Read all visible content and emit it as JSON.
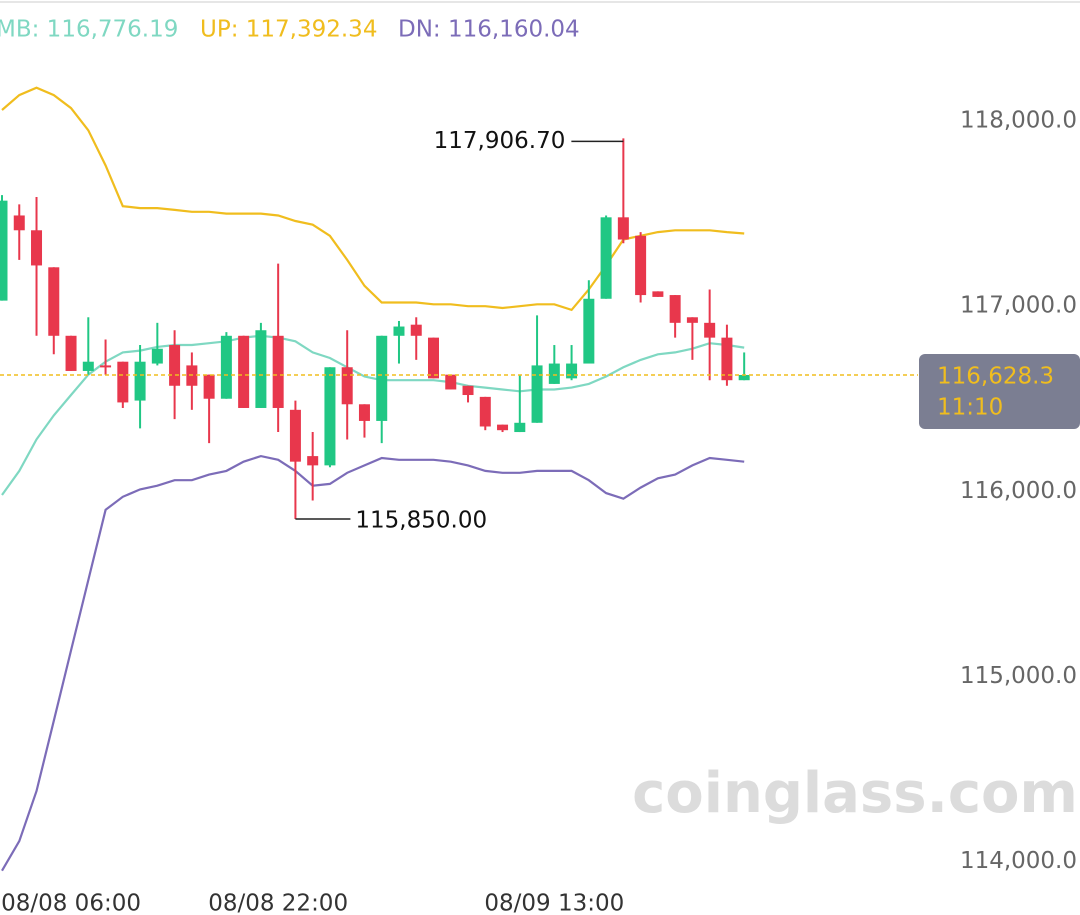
{
  "chart_data": {
    "type": "candlestick",
    "categories": [
      null,
      null,
      null,
      null,
      "08/08 06:00",
      null,
      null,
      null,
      null,
      null,
      null,
      null,
      null,
      null,
      null,
      null,
      "08/08 22:00",
      null,
      null,
      null,
      null,
      null,
      null,
      null,
      null,
      null,
      null,
      null,
      null,
      null,
      null,
      null,
      "08/09 13:00",
      null,
      null,
      null,
      null,
      null,
      null,
      null,
      null,
      null,
      null,
      null
    ],
    "open": [
      117030,
      117490,
      117410,
      117210,
      116840,
      116650,
      116680,
      116700,
      116490,
      116690,
      116790,
      116680,
      116630,
      116500,
      116840,
      116450,
      116840,
      116440,
      116190,
      116140,
      116670,
      116470,
      116380,
      116840,
      116900,
      116830,
      116630,
      116570,
      116510,
      116360,
      116320,
      116370,
      116580,
      116610,
      116690,
      117040,
      117480,
      117380,
      117080,
      117060,
      116940,
      116910,
      116830,
      116600
    ],
    "high": [
      117600,
      117550,
      117590,
      117210,
      116840,
      116940,
      116820,
      116700,
      116790,
      116910,
      116870,
      116750,
      116630,
      116860,
      116840,
      116910,
      117230,
      116490,
      116320,
      116670,
      116870,
      116470,
      116840,
      116920,
      116940,
      116830,
      116630,
      116570,
      116510,
      116360,
      116630,
      116950,
      116790,
      116790,
      117140,
      117490,
      117906.7,
      117400,
      117080,
      117060,
      116940,
      117090,
      116900,
      116750
    ],
    "low": [
      117030,
      117250,
      116840,
      116740,
      116650,
      116630,
      116630,
      116450,
      116340,
      116680,
      116390,
      116440,
      116260,
      116500,
      116450,
      116450,
      116320,
      115850,
      115950,
      116130,
      116280,
      116290,
      116260,
      116690,
      116710,
      116610,
      116550,
      116480,
      116330,
      116320,
      116320,
      116370,
      116580,
      116600,
      116690,
      117040,
      117340,
      117020,
      117050,
      116830,
      116710,
      116600,
      116570,
      116600
    ],
    "close": [
      117570,
      117410,
      117220,
      116840,
      116650,
      116700,
      116670,
      116480,
      116700,
      116770,
      116570,
      116570,
      116500,
      116840,
      116450,
      116870,
      116450,
      116160,
      116140,
      116670,
      116470,
      116380,
      116840,
      116890,
      116840,
      116610,
      116550,
      116520,
      116350,
      116330,
      116370,
      116680,
      116690,
      116690,
      117040,
      117480,
      117360,
      117060,
      117050,
      116910,
      116910,
      116830,
      116600,
      116628.3
    ],
    "up_color": "#20c784",
    "down_color": "#e8374c",
    "series": [
      {
        "label": "MB: 116,776.19",
        "color": "#7fd8c2",
        "values": [
          115980,
          116110,
          116280,
          116410,
          116520,
          116630,
          116700,
          116750,
          116760,
          116780,
          116790,
          116790,
          116800,
          116810,
          116830,
          116840,
          116830,
          116810,
          116750,
          116720,
          116670,
          116620,
          116600,
          116600,
          116600,
          116600,
          116590,
          116570,
          116560,
          116550,
          116540,
          116550,
          116550,
          116560,
          116580,
          116620,
          116670,
          116710,
          116740,
          116750,
          116770,
          116800,
          116790,
          116776.19
        ]
      },
      {
        "label": "UP: 117,392.34",
        "color": "#f0bd1e",
        "values": [
          118060,
          118140,
          118180,
          118140,
          118070,
          117950,
          117760,
          117540,
          117530,
          117530,
          117520,
          117510,
          117510,
          117500,
          117500,
          117500,
          117490,
          117460,
          117440,
          117380,
          117250,
          117110,
          117020,
          117020,
          117020,
          117010,
          117010,
          117000,
          117000,
          116990,
          117000,
          117010,
          117010,
          116980,
          117090,
          117220,
          117360,
          117380,
          117400,
          117410,
          117410,
          117410,
          117400,
          117392.34
        ]
      },
      {
        "label": "DN: 116,160.04",
        "color": "#7c6cb8",
        "values": [
          113950,
          114110,
          114380,
          114760,
          115140,
          115520,
          115900,
          115970,
          116010,
          116030,
          116060,
          116060,
          116090,
          116110,
          116160,
          116190,
          116170,
          116110,
          116030,
          116040,
          116100,
          116140,
          116180,
          116170,
          116170,
          116170,
          116160,
          116140,
          116110,
          116100,
          116100,
          116110,
          116110,
          116110,
          116060,
          115990,
          115960,
          116020,
          116070,
          116090,
          116140,
          116180,
          116170,
          116160.04
        ]
      }
    ],
    "ylim": [
      113900,
      118600
    ],
    "yticks": [
      {
        "value": 114000,
        "label": "114,000.0"
      },
      {
        "value": 115000,
        "label": "115,000.0"
      },
      {
        "value": 116000,
        "label": "116,000.0"
      },
      {
        "value": 117000,
        "label": "117,000.0"
      },
      {
        "value": 118000,
        "label": "118,000.0"
      }
    ],
    "annotations": {
      "max_label": "117,906.70",
      "min_label": "115,850.00"
    },
    "current": {
      "value": 116628.3,
      "label": "116,628.3",
      "countdown": "11:10",
      "color": "#f0bd1e"
    },
    "watermark": "coinglass.com"
  }
}
